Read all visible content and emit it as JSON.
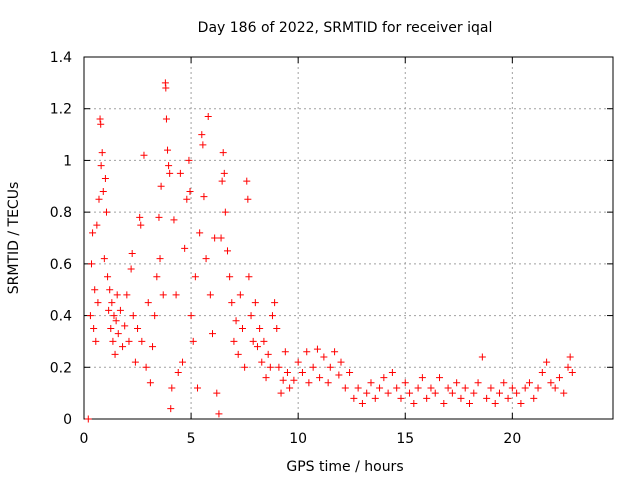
{
  "chart_data": {
    "type": "scatter",
    "title": "Day 186 of 2022, SRMTID for receiver iqal",
    "xlabel": "GPS time / hours",
    "ylabel": "SRMTID / TECUs",
    "xlim": [
      0,
      24.7
    ],
    "ylim": [
      0,
      1.4
    ],
    "x_ticks": [
      0,
      5,
      10,
      15,
      20
    ],
    "y_ticks": [
      0,
      0.2,
      0.4,
      0.6,
      0.8,
      1,
      1.2,
      1.4
    ],
    "grid": true,
    "marker": "+",
    "color": "#ff0000",
    "series": [
      {
        "name": "SRMTID",
        "points": [
          [
            0.2,
            0.0
          ],
          [
            0.3,
            0.4
          ],
          [
            0.35,
            0.6
          ],
          [
            0.4,
            0.72
          ],
          [
            0.45,
            0.35
          ],
          [
            0.5,
            0.5
          ],
          [
            0.55,
            0.3
          ],
          [
            0.6,
            0.75
          ],
          [
            0.65,
            0.45
          ],
          [
            0.7,
            0.85
          ],
          [
            0.75,
            1.16
          ],
          [
            0.78,
            1.14
          ],
          [
            0.8,
            0.98
          ],
          [
            0.85,
            1.03
          ],
          [
            0.9,
            0.88
          ],
          [
            0.95,
            0.62
          ],
          [
            1.0,
            0.93
          ],
          [
            1.05,
            0.8
          ],
          [
            1.1,
            0.55
          ],
          [
            1.15,
            0.42
          ],
          [
            1.2,
            0.5
          ],
          [
            1.25,
            0.35
          ],
          [
            1.3,
            0.45
          ],
          [
            1.35,
            0.3
          ],
          [
            1.4,
            0.4
          ],
          [
            1.45,
            0.25
          ],
          [
            1.5,
            0.38
          ],
          [
            1.55,
            0.48
          ],
          [
            1.6,
            0.33
          ],
          [
            1.7,
            0.42
          ],
          [
            1.8,
            0.28
          ],
          [
            1.9,
            0.36
          ],
          [
            2.0,
            0.48
          ],
          [
            2.1,
            0.3
          ],
          [
            2.2,
            0.58
          ],
          [
            2.25,
            0.64
          ],
          [
            2.3,
            0.4
          ],
          [
            2.4,
            0.22
          ],
          [
            2.5,
            0.35
          ],
          [
            2.6,
            0.78
          ],
          [
            2.65,
            0.75
          ],
          [
            2.7,
            0.3
          ],
          [
            2.8,
            1.02
          ],
          [
            2.9,
            0.2
          ],
          [
            3.0,
            0.45
          ],
          [
            3.1,
            0.14
          ],
          [
            3.2,
            0.28
          ],
          [
            3.3,
            0.4
          ],
          [
            3.4,
            0.55
          ],
          [
            3.5,
            0.78
          ],
          [
            3.55,
            0.62
          ],
          [
            3.6,
            0.9
          ],
          [
            3.7,
            0.48
          ],
          [
            3.8,
            1.3
          ],
          [
            3.82,
            1.28
          ],
          [
            3.85,
            1.16
          ],
          [
            3.9,
            1.04
          ],
          [
            3.95,
            0.98
          ],
          [
            4.0,
            0.95
          ],
          [
            4.05,
            0.04
          ],
          [
            4.1,
            0.12
          ],
          [
            4.2,
            0.77
          ],
          [
            4.3,
            0.48
          ],
          [
            4.4,
            0.18
          ],
          [
            4.5,
            0.95
          ],
          [
            4.6,
            0.22
          ],
          [
            4.7,
            0.66
          ],
          [
            4.8,
            0.85
          ],
          [
            4.9,
            1.0
          ],
          [
            4.95,
            0.88
          ],
          [
            5.0,
            0.4
          ],
          [
            5.1,
            0.3
          ],
          [
            5.2,
            0.55
          ],
          [
            5.3,
            0.12
          ],
          [
            5.4,
            0.72
          ],
          [
            5.5,
            1.1
          ],
          [
            5.55,
            1.06
          ],
          [
            5.6,
            0.86
          ],
          [
            5.7,
            0.62
          ],
          [
            5.8,
            1.17
          ],
          [
            5.9,
            0.48
          ],
          [
            6.0,
            0.33
          ],
          [
            6.1,
            0.7
          ],
          [
            6.2,
            0.1
          ],
          [
            6.3,
            0.02
          ],
          [
            6.4,
            0.7
          ],
          [
            6.45,
            0.92
          ],
          [
            6.5,
            1.03
          ],
          [
            6.55,
            0.95
          ],
          [
            6.6,
            0.8
          ],
          [
            6.7,
            0.65
          ],
          [
            6.8,
            0.55
          ],
          [
            6.9,
            0.45
          ],
          [
            7.0,
            0.3
          ],
          [
            7.1,
            0.38
          ],
          [
            7.2,
            0.25
          ],
          [
            7.3,
            0.48
          ],
          [
            7.4,
            0.35
          ],
          [
            7.5,
            0.2
          ],
          [
            7.6,
            0.92
          ],
          [
            7.65,
            0.85
          ],
          [
            7.7,
            0.55
          ],
          [
            7.8,
            0.4
          ],
          [
            7.9,
            0.3
          ],
          [
            8.0,
            0.45
          ],
          [
            8.1,
            0.28
          ],
          [
            8.2,
            0.35
          ],
          [
            8.3,
            0.22
          ],
          [
            8.4,
            0.3
          ],
          [
            8.5,
            0.16
          ],
          [
            8.6,
            0.25
          ],
          [
            8.7,
            0.2
          ],
          [
            8.8,
            0.4
          ],
          [
            8.9,
            0.45
          ],
          [
            9.0,
            0.35
          ],
          [
            9.1,
            0.2
          ],
          [
            9.2,
            0.1
          ],
          [
            9.3,
            0.15
          ],
          [
            9.4,
            0.26
          ],
          [
            9.5,
            0.18
          ],
          [
            9.6,
            0.12
          ],
          [
            9.8,
            0.15
          ],
          [
            10.0,
            0.22
          ],
          [
            10.2,
            0.18
          ],
          [
            10.4,
            0.26
          ],
          [
            10.5,
            0.14
          ],
          [
            10.7,
            0.2
          ],
          [
            10.9,
            0.27
          ],
          [
            11.0,
            0.16
          ],
          [
            11.2,
            0.24
          ],
          [
            11.4,
            0.14
          ],
          [
            11.5,
            0.2
          ],
          [
            11.7,
            0.26
          ],
          [
            11.9,
            0.17
          ],
          [
            12.0,
            0.22
          ],
          [
            12.2,
            0.12
          ],
          [
            12.4,
            0.18
          ],
          [
            12.6,
            0.08
          ],
          [
            12.8,
            0.12
          ],
          [
            13.0,
            0.06
          ],
          [
            13.2,
            0.1
          ],
          [
            13.4,
            0.14
          ],
          [
            13.6,
            0.08
          ],
          [
            13.8,
            0.12
          ],
          [
            14.0,
            0.16
          ],
          [
            14.2,
            0.1
          ],
          [
            14.4,
            0.18
          ],
          [
            14.6,
            0.12
          ],
          [
            14.8,
            0.08
          ],
          [
            15.0,
            0.14
          ],
          [
            15.2,
            0.1
          ],
          [
            15.4,
            0.06
          ],
          [
            15.6,
            0.12
          ],
          [
            15.8,
            0.16
          ],
          [
            16.0,
            0.08
          ],
          [
            16.2,
            0.12
          ],
          [
            16.4,
            0.1
          ],
          [
            16.6,
            0.16
          ],
          [
            16.8,
            0.06
          ],
          [
            17.0,
            0.12
          ],
          [
            17.2,
            0.1
          ],
          [
            17.4,
            0.14
          ],
          [
            17.6,
            0.08
          ],
          [
            17.8,
            0.12
          ],
          [
            18.0,
            0.06
          ],
          [
            18.2,
            0.1
          ],
          [
            18.4,
            0.14
          ],
          [
            18.6,
            0.24
          ],
          [
            18.8,
            0.08
          ],
          [
            19.0,
            0.12
          ],
          [
            19.2,
            0.06
          ],
          [
            19.4,
            0.1
          ],
          [
            19.6,
            0.14
          ],
          [
            19.8,
            0.08
          ],
          [
            20.0,
            0.12
          ],
          [
            20.2,
            0.1
          ],
          [
            20.4,
            0.06
          ],
          [
            20.6,
            0.12
          ],
          [
            20.8,
            0.14
          ],
          [
            21.0,
            0.08
          ],
          [
            21.2,
            0.12
          ],
          [
            21.4,
            0.18
          ],
          [
            21.6,
            0.22
          ],
          [
            21.8,
            0.14
          ],
          [
            22.0,
            0.12
          ],
          [
            22.2,
            0.16
          ],
          [
            22.4,
            0.1
          ],
          [
            22.6,
            0.2
          ],
          [
            22.7,
            0.24
          ],
          [
            22.8,
            0.18
          ]
        ]
      }
    ]
  }
}
